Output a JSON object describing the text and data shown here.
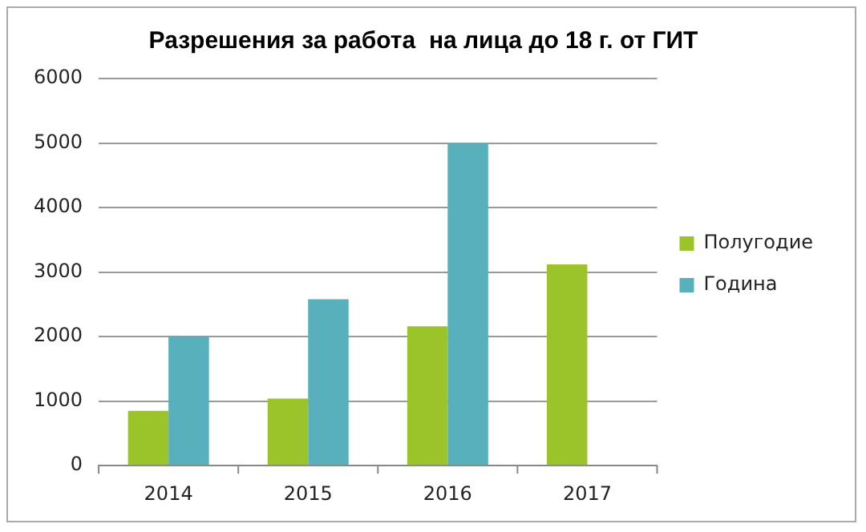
{
  "chart_data": {
    "type": "bar",
    "title": "Разрешения за работа  на лица до 18 г. от ГИТ",
    "categories": [
      "2014",
      "2015",
      "2016",
      "2017"
    ],
    "series": [
      {
        "name": "Полугодие",
        "color": "#9bc32a",
        "values": [
          850,
          1040,
          2160,
          3120
        ]
      },
      {
        "name": "Година",
        "color": "#58b0bd",
        "values": [
          2000,
          2580,
          5000,
          null
        ]
      }
    ],
    "ylim": [
      0,
      6000
    ],
    "yticks": [
      0,
      1000,
      2000,
      3000,
      4000,
      5000,
      6000
    ],
    "grid": "y",
    "legend": "right"
  }
}
